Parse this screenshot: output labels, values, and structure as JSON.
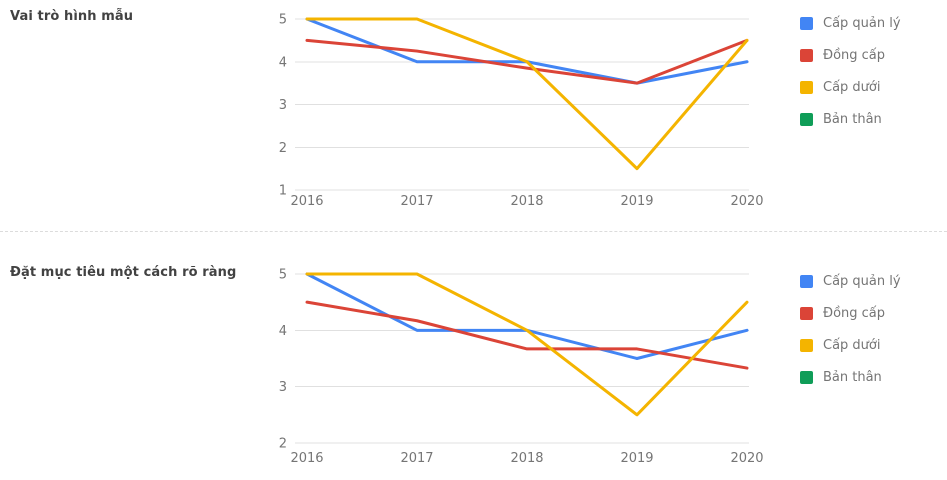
{
  "page": {
    "background": "#ffffff"
  },
  "chart_data": [
    {
      "type": "line",
      "title": "Vai trò hình mẫu",
      "x_labels": [
        "2016",
        "2017",
        "2018",
        "2019",
        "2020"
      ],
      "y_ticks": [
        1,
        2,
        3,
        4,
        5
      ],
      "ylim": [
        1,
        5
      ],
      "grid": true,
      "legend_position": "right",
      "series": [
        {
          "key": "cap-quan-ly",
          "name": "Cấp quản lý",
          "color": "#4285f4",
          "values": [
            5,
            4,
            4,
            3.5,
            4
          ]
        },
        {
          "key": "dong-cap",
          "name": "Đồng cấp",
          "color": "#db4437",
          "values": [
            4.5,
            4.25,
            3.85,
            3.5,
            4.5
          ]
        },
        {
          "key": "cap-duoi",
          "name": "Cấp dưới",
          "color": "#f4b400",
          "values": [
            5,
            5,
            4,
            1.5,
            4.5
          ]
        },
        {
          "key": "ban-than",
          "name": "Bản thân",
          "color": "#0f9d58",
          "values": []
        }
      ]
    },
    {
      "type": "line",
      "title": "Đặt mục tiêu một cách rõ ràng",
      "x_labels": [
        "2016",
        "2017",
        "2018",
        "2019",
        "2020"
      ],
      "y_ticks": [
        2,
        3,
        4,
        5
      ],
      "ylim": [
        2,
        5
      ],
      "grid": true,
      "legend_position": "right",
      "series": [
        {
          "key": "cap-quan-ly",
          "name": "Cấp quản lý",
          "color": "#4285f4",
          "values": [
            5,
            4,
            4,
            3.5,
            4
          ]
        },
        {
          "key": "dong-cap",
          "name": "Đồng cấp",
          "color": "#db4437",
          "values": [
            4.5,
            4.17,
            3.67,
            3.67,
            3.33
          ]
        },
        {
          "key": "cap-duoi",
          "name": "Cấp dưới",
          "color": "#f4b400",
          "values": [
            5,
            5,
            4,
            2.5,
            4.5
          ]
        },
        {
          "key": "ban-than",
          "name": "Bản thân",
          "color": "#0f9d58",
          "values": []
        }
      ]
    }
  ],
  "style": {
    "gridline_color": "#e0e0e0",
    "tick_label_color": "#757575",
    "title_color": "#424242",
    "divider_color": "#dcdcdc"
  }
}
